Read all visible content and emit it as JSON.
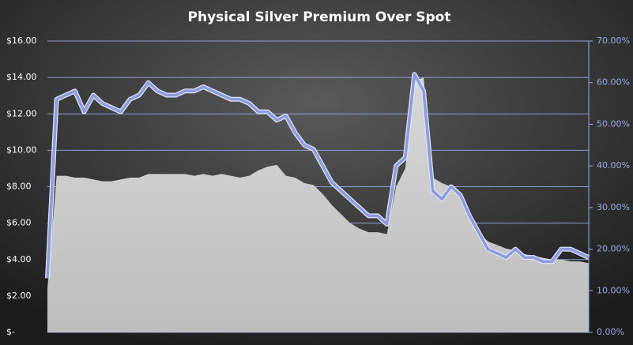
{
  "chart_data": {
    "type": "area-line",
    "title": "Physical Silver Premium Over Spot",
    "categories": [
      null,
      null,
      null,
      null,
      null,
      null,
      null,
      null,
      null,
      null,
      null,
      null,
      null,
      null,
      null,
      null,
      null,
      null,
      null,
      null,
      null,
      null,
      null,
      null,
      null,
      null,
      null,
      null,
      null,
      null,
      null,
      null,
      null,
      null,
      null,
      null,
      null,
      null,
      null,
      null,
      null,
      null,
      null,
      null,
      null,
      null,
      null,
      null,
      null,
      null,
      null,
      null,
      null,
      null,
      null,
      null,
      null,
      null,
      null,
      null
    ],
    "series": [
      {
        "type": "area",
        "color": "#cfcfcf",
        "values": [
          2.4,
          8.6,
          8.6,
          8.5,
          8.5,
          8.4,
          8.3,
          8.3,
          8.4,
          8.5,
          8.5,
          8.7,
          8.7,
          8.7,
          8.7,
          8.7,
          8.6,
          8.7,
          8.6,
          8.7,
          8.6,
          8.5,
          8.6,
          8.9,
          9.1,
          9.2,
          8.6,
          8.5,
          8.2,
          8.1,
          7.6,
          7.0,
          6.5,
          6.0,
          5.7,
          5.5,
          5.5,
          5.4,
          8.0,
          9.0,
          13.8,
          14.0,
          8.5,
          8.2,
          8.0,
          7.5,
          6.5,
          5.5,
          5.0,
          4.8,
          4.6,
          4.5,
          4.3,
          4.2,
          4.1,
          4.0,
          4.0,
          3.9,
          3.9,
          3.8
        ]
      },
      {
        "type": "line",
        "axis": "y2",
        "color": "#8c9cdc",
        "values": [
          13,
          56,
          57,
          58,
          53,
          57,
          55,
          54,
          53,
          56,
          57,
          60,
          58,
          57,
          57,
          58,
          58,
          59,
          58,
          57,
          56,
          56,
          55,
          53,
          53,
          51,
          52,
          48,
          45,
          44,
          40,
          36,
          34,
          32,
          30,
          28,
          28,
          26,
          40,
          42,
          62,
          58,
          34,
          32,
          35,
          33,
          28,
          24,
          20,
          19,
          18,
          20,
          18,
          18,
          17,
          17,
          20,
          20,
          19,
          18
        ]
      }
    ],
    "ylim": [
      0,
      16
    ],
    "yticks": [
      {
        "value": 0,
        "label": "$-"
      },
      {
        "value": 2,
        "label": "$2.00"
      },
      {
        "value": 4,
        "label": "$4.00"
      },
      {
        "value": 6,
        "label": "$6.00"
      },
      {
        "value": 8,
        "label": "$8.00"
      },
      {
        "value": 10,
        "label": "$10.00"
      },
      {
        "value": 12,
        "label": "$12.00"
      },
      {
        "value": 14,
        "label": "$14.00"
      },
      {
        "value": 16,
        "label": "$16.00"
      }
    ],
    "y2lim": [
      0,
      70
    ],
    "y2ticks": [
      {
        "value": 0,
        "label": "0.00%"
      },
      {
        "value": 10,
        "label": "10.00%"
      },
      {
        "value": 20,
        "label": "20.00%"
      },
      {
        "value": 30,
        "label": "30.00%"
      },
      {
        "value": 40,
        "label": "40.00%"
      },
      {
        "value": 50,
        "label": "50.00%"
      },
      {
        "value": 60,
        "label": "60.00%"
      },
      {
        "value": 70,
        "label": "70.00%"
      }
    ],
    "grid": true
  }
}
